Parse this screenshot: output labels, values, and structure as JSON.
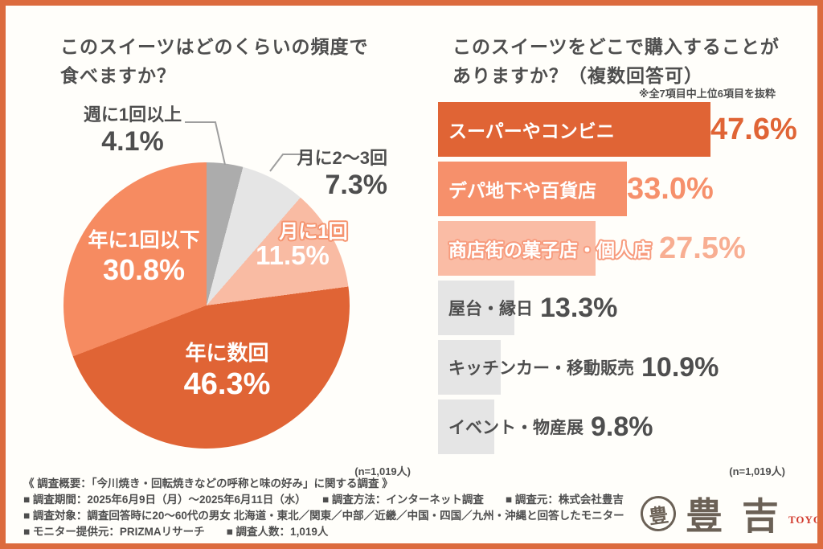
{
  "frequency": {
    "title_lines": [
      "このスイーツはどのくらいの頻度で",
      "食べますか？"
    ]
  },
  "purchase": {
    "title_lines": [
      "このスイーツをどこで購入することが",
      "ありますか？（複数回答可）"
    ]
  },
  "chart_data": [
    {
      "type": "pie",
      "title": "このスイーツはどのくらいの頻度で食べますか？",
      "unit": "%",
      "order": "clockwise-from-top",
      "segments": [
        {
          "label": "週に1回以上",
          "value": 4.1,
          "display": "4.1%",
          "color": "#ACACAC"
        },
        {
          "label": "月に2〜3回",
          "value": 7.3,
          "display": "7.3%",
          "color": "#E5E5E5"
        },
        {
          "label": "月に1回",
          "value": 11.5,
          "display": "11.5%",
          "color": "#F9BBA3"
        },
        {
          "label": "年に数回",
          "value": 46.3,
          "display": "46.3%",
          "color": "#E06435"
        },
        {
          "label": "年に1回以下",
          "value": 30.8,
          "display": "30.8%",
          "color": "#F68B61"
        }
      ],
      "n": "(n=1,019人)"
    },
    {
      "type": "bar",
      "orientation": "horizontal",
      "title": "このスイーツをどこで購入することがありますか？（複数回答可）",
      "note": "※全7項目中上位6項目を抜粋",
      "unit": "%",
      "categories": [
        "スーパーやコンビニ",
        "デパ地下や百貨店",
        "商店街の菓子店・個人店",
        "屋台・縁日",
        "キッチンカー・移動販売",
        "イベント・物産展"
      ],
      "values": [
        47.6,
        33.0,
        27.5,
        13.3,
        10.9,
        9.8
      ],
      "bars": [
        {
          "label": "スーパーやコンビニ",
          "value": 47.6,
          "display": "47.6%",
          "bar_color": "#E06435",
          "label_color": "#FFFFFF",
          "pct_color": "#E06435"
        },
        {
          "label": "デパ地下や百貨店",
          "value": 33.0,
          "display": "33.0%",
          "bar_color": "#F6906B",
          "label_color": "#FFFFFF",
          "pct_color": "#F6906B"
        },
        {
          "label": "商店街の菓子店・個人店",
          "value": 27.5,
          "display": "27.5%",
          "bar_color": "#FABCA5",
          "label_color": "#FFFFFF",
          "pct_color": "#F8AE92",
          "label_outline_color": "#F79B7D"
        },
        {
          "label": "屋台・縁日",
          "value": 13.3,
          "display": "13.3%",
          "bar_color": "#E5E5E5",
          "label_color": "#4E4E4E",
          "pct_color": "#4E4E4E"
        },
        {
          "label": "キッチンカー・移動販売",
          "value": 10.9,
          "display": "10.9%",
          "bar_color": "#E5E5E5",
          "label_color": "#4E4E4E",
          "pct_color": "#4E4E4E"
        },
        {
          "label": "イベント・物産展",
          "value": 9.8,
          "display": "9.8%",
          "bar_color": "#E5E5E5",
          "label_color": "#4E4E4E",
          "pct_color": "#4E4E4E"
        }
      ],
      "n": "(n=1,019人)"
    }
  ],
  "footer": {
    "lines": [
      "《 調査概要：「今川焼き・回転焼きなどの呼称と味の好み」に関する調査 》",
      "■ 調査期間：2025年6月9日（月）〜2025年6月11日（水）　　■ 調査方法：インターネット調査　　■ 調査元：株式会社豊吉",
      "■ 調査対象：調査回答時に20〜60代の男女 北海道・東北／関東／中部／近畿／中国・四国／九州・沖縄と回答したモニター",
      "■ モニター提供元：PRIZMAリサーチ　　■ 調査人数：1,019人"
    ]
  },
  "logo": {
    "seal_glyph": "豊",
    "name": "豊吉",
    "romaji": "TOYOYOSHI"
  },
  "colors": {
    "frame_border": "#DC6B3E",
    "background": "#FFFEFA",
    "text_dark": "#4E4E4E",
    "accent_orange": "#E06435",
    "salmon": "#F6906B",
    "light_pink": "#FABCA5",
    "gray_bar": "#E5E5E5",
    "leader_line": "#9E9E9E",
    "pie_label_outline": "#F5936E",
    "logo_brown": "#6B6156",
    "logo_red": "#D23A2D"
  }
}
